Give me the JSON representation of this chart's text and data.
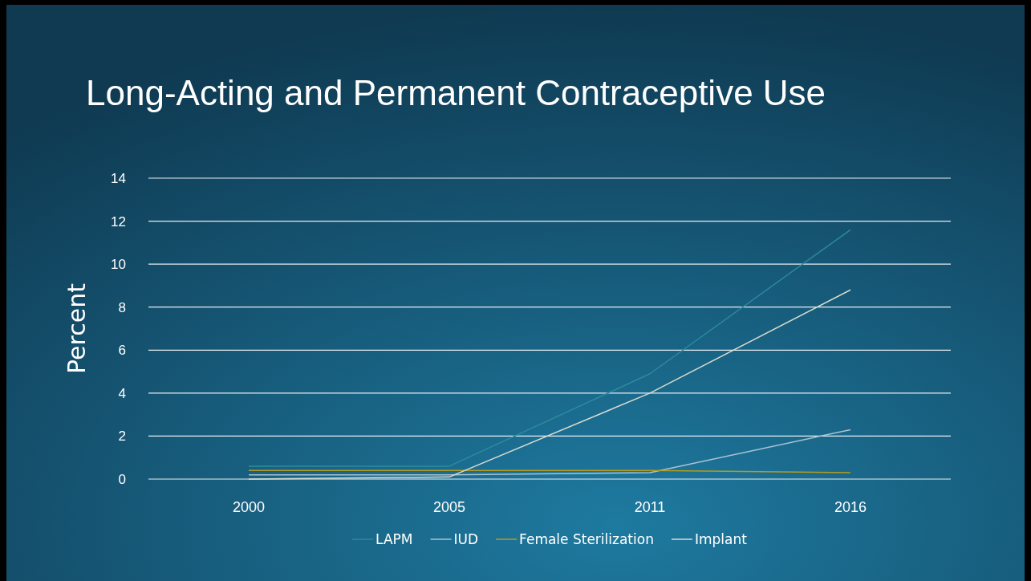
{
  "chart_data": {
    "type": "line",
    "title": "Long-Acting and Permanent Contraceptive Use",
    "ylabel": "Percent",
    "categories": [
      "2000",
      "2005",
      "2011",
      "2016"
    ],
    "series": [
      {
        "name": "LAPM",
        "color": "#2e8a9e",
        "values": [
          0.6,
          0.6,
          4.9,
          11.6
        ]
      },
      {
        "name": "IUD",
        "color": "#a9c4d4",
        "values": [
          0.2,
          0.2,
          0.3,
          2.3
        ]
      },
      {
        "name": "Female Sterilization",
        "color": "#b89a1e",
        "values": [
          0.4,
          0.4,
          0.4,
          0.3
        ]
      },
      {
        "name": "Implant",
        "color": "#d8dccf",
        "values": [
          0.0,
          0.1,
          4.0,
          8.8
        ]
      }
    ],
    "ylim": [
      0,
      14
    ],
    "yticks": [
      0,
      2,
      4,
      6,
      8,
      10,
      12,
      14
    ],
    "grid": "y",
    "legend": "bottom",
    "marker": "none",
    "line_style": "solid"
  }
}
